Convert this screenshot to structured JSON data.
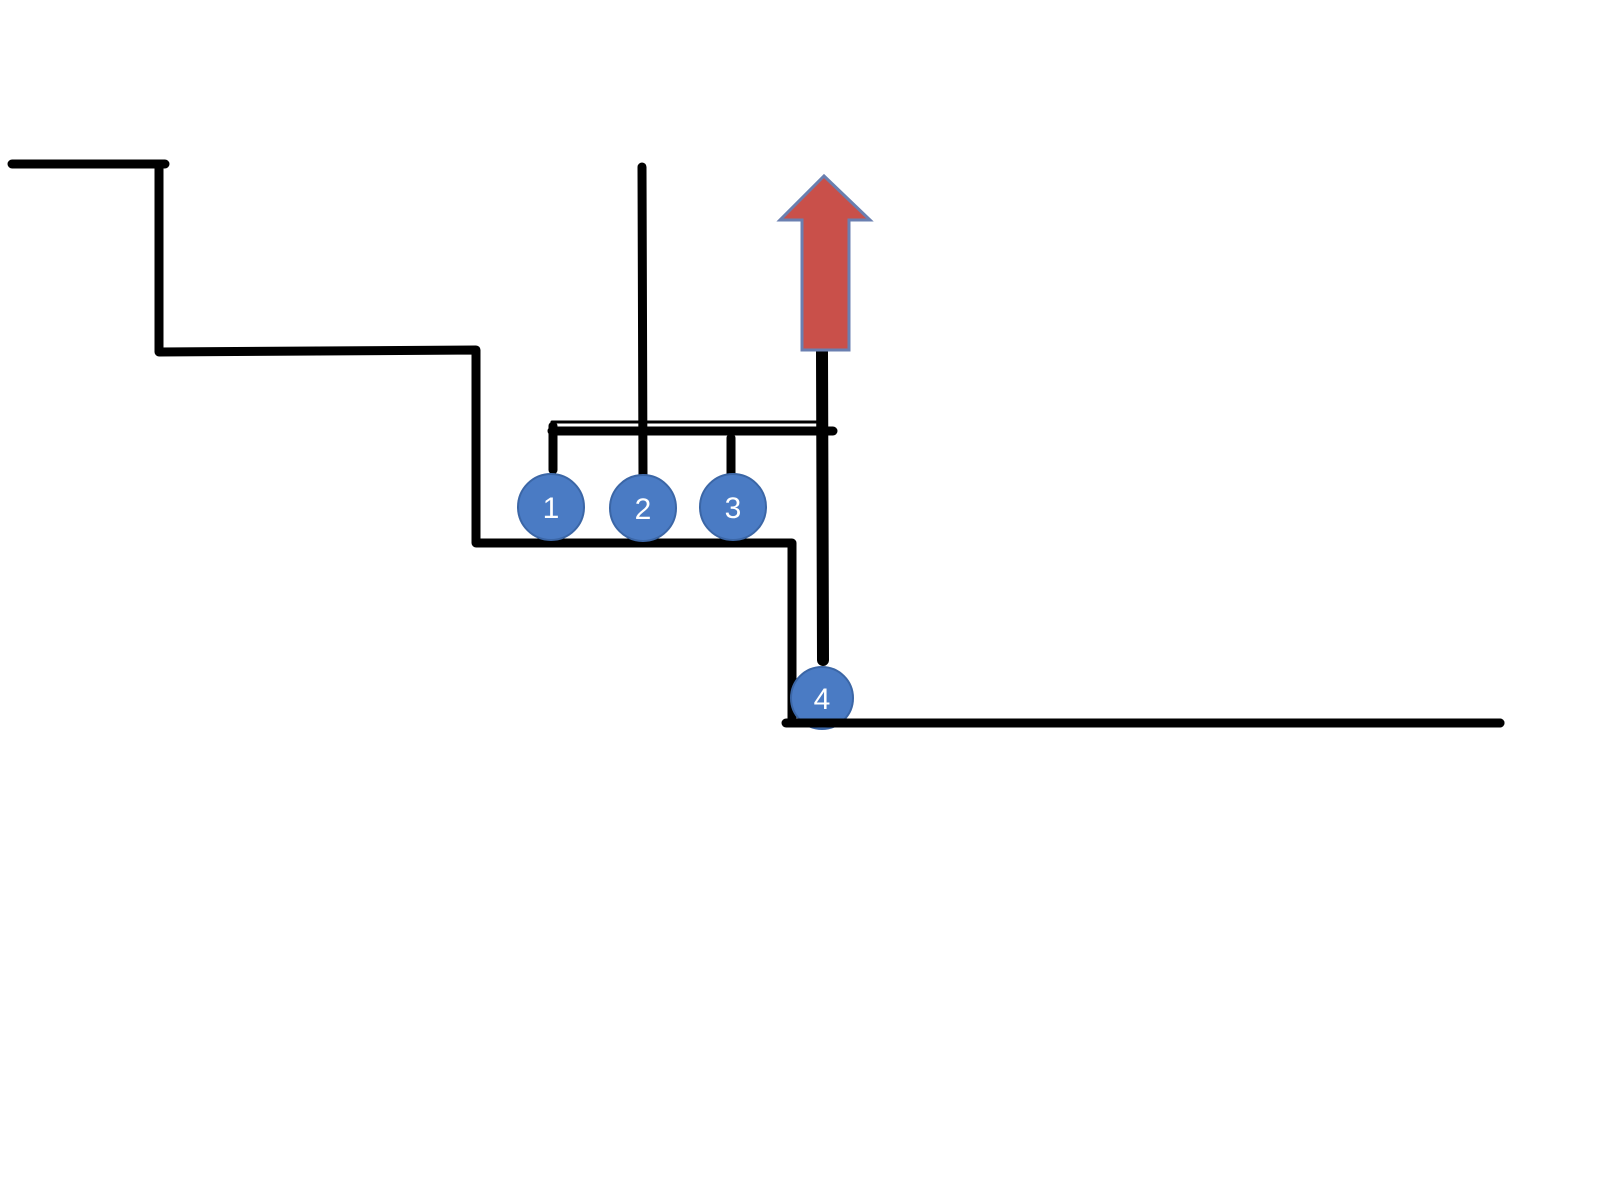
{
  "colors": {
    "background": "#ffffff",
    "line": "#000000",
    "wheel_fill": "#4a7bc4",
    "wheel_stroke": "#3b66a6",
    "arrow_fill": "#c9504a",
    "arrow_stroke": "#6a7fb0"
  },
  "wheels": [
    {
      "label": "1"
    },
    {
      "label": "2"
    },
    {
      "label": "3"
    },
    {
      "label": "4"
    }
  ],
  "arrow": {
    "direction": "up"
  }
}
